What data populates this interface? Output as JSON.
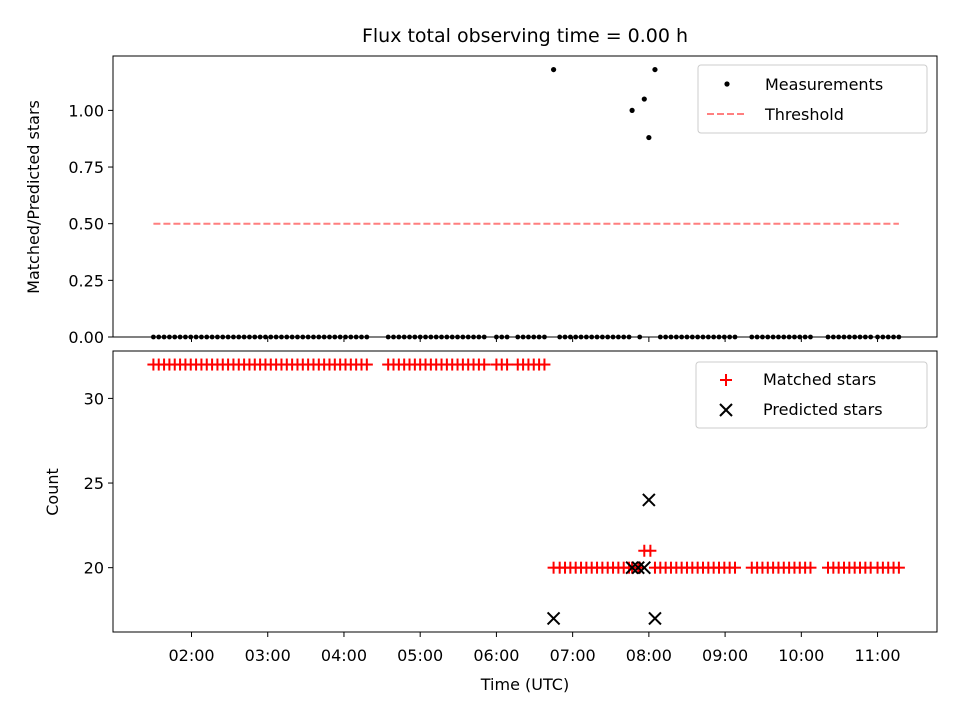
{
  "chart_data": {
    "title": "Flux total observing time = 0.00 h",
    "xlabel": "Time (UTC)",
    "x_ticks": [
      "02:00",
      "03:00",
      "04:00",
      "05:00",
      "06:00",
      "07:00",
      "08:00",
      "09:00",
      "10:00",
      "11:00"
    ],
    "xlim_hours": [
      0.97,
      11.78
    ],
    "panels": [
      {
        "type": "scatter",
        "ylabel": "Matched/Predicted stars",
        "ylim": [
          0,
          1.24
        ],
        "y_ticks": [
          "0.00",
          "0.25",
          "0.50",
          "0.75",
          "1.00"
        ],
        "y_tick_values": [
          0,
          0.25,
          0.5,
          0.75,
          1.0
        ],
        "legend_position": "top-right",
        "series": [
          {
            "name": "Measurements",
            "marker": "dot",
            "color": "#000000",
            "points_zero_hours": [
              1.5,
              1.57,
              1.64,
              1.71,
              1.78,
              1.85,
              1.92,
              1.99,
              2.06,
              2.13,
              2.2,
              2.27,
              2.34,
              2.41,
              2.48,
              2.55,
              2.62,
              2.69,
              2.76,
              2.83,
              2.9,
              2.97,
              3.04,
              3.11,
              3.18,
              3.25,
              3.32,
              3.39,
              3.46,
              3.53,
              3.6,
              3.67,
              3.74,
              3.81,
              3.88,
              3.95,
              4.02,
              4.09,
              4.16,
              4.23,
              4.3,
              4.58,
              4.65,
              4.72,
              4.79,
              4.86,
              4.93,
              5.0,
              5.07,
              5.14,
              5.21,
              5.28,
              5.35,
              5.42,
              5.49,
              5.56,
              5.63,
              5.7,
              5.77,
              5.84,
              6.0,
              6.07,
              6.14,
              6.28,
              6.35,
              6.42,
              6.49,
              6.56,
              6.63,
              6.83,
              6.9,
              6.97,
              7.04,
              7.11,
              7.18,
              7.25,
              7.32,
              7.39,
              7.46,
              7.53,
              7.6,
              7.67,
              7.74,
              7.88,
              8.15,
              8.22,
              8.29,
              8.36,
              8.43,
              8.5,
              8.57,
              8.64,
              8.71,
              8.78,
              8.85,
              8.92,
              8.99,
              9.06,
              9.13,
              9.35,
              9.42,
              9.49,
              9.56,
              9.63,
              9.7,
              9.77,
              9.84,
              9.91,
              9.98,
              10.05,
              10.12,
              10.35,
              10.42,
              10.49,
              10.56,
              10.63,
              10.7,
              10.77,
              10.84,
              10.91,
              11.0,
              11.07,
              11.14,
              11.21,
              11.28
            ],
            "points": [
              [
                6.75,
                1.18
              ],
              [
                7.78,
                1.0
              ],
              [
                7.94,
                1.05
              ],
              [
                8.0,
                0.88
              ],
              [
                8.08,
                1.18
              ]
            ]
          },
          {
            "name": "Threshold",
            "style": "dashed",
            "color": "#ff7f7f",
            "x": [
              1.5,
              11.28
            ],
            "y": [
              0.5,
              0.5
            ]
          }
        ]
      },
      {
        "type": "scatter",
        "ylabel": "Count",
        "ylim": [
          16.2,
          32.8
        ],
        "y_ticks": [
          "20",
          "25",
          "30"
        ],
        "y_tick_values": [
          20,
          25,
          30
        ],
        "legend_position": "top-right",
        "series": [
          {
            "name": "Matched stars",
            "marker": "plus",
            "color": "#ff0000",
            "groups": [
              {
                "y": 32,
                "x": [
                  1.5,
                  1.57,
                  1.64,
                  1.71,
                  1.78,
                  1.85,
                  1.92,
                  1.99,
                  2.06,
                  2.13,
                  2.2,
                  2.27,
                  2.34,
                  2.41,
                  2.48,
                  2.55,
                  2.62,
                  2.69,
                  2.76,
                  2.83,
                  2.9,
                  2.97,
                  3.04,
                  3.11,
                  3.18,
                  3.25,
                  3.32,
                  3.39,
                  3.46,
                  3.53,
                  3.6,
                  3.67,
                  3.74,
                  3.81,
                  3.88,
                  3.95,
                  4.02,
                  4.09,
                  4.16,
                  4.23,
                  4.3,
                  4.58,
                  4.65,
                  4.72,
                  4.79,
                  4.86,
                  4.93,
                  5.0,
                  5.07,
                  5.14,
                  5.21,
                  5.28,
                  5.35,
                  5.42,
                  5.49,
                  5.56,
                  5.63,
                  5.7,
                  5.77,
                  5.84,
                  6.0,
                  6.07,
                  6.14,
                  6.28,
                  6.35,
                  6.42,
                  6.49,
                  6.56,
                  6.63
                ]
              },
              {
                "y": 20,
                "x": [
                  6.75,
                  6.83,
                  6.9,
                  6.97,
                  7.04,
                  7.11,
                  7.18,
                  7.25,
                  7.32,
                  7.39,
                  7.46,
                  7.53,
                  7.6,
                  7.67,
                  7.74,
                  7.78,
                  7.86,
                  7.88,
                  8.08,
                  8.15,
                  8.22,
                  8.29,
                  8.36,
                  8.43,
                  8.5,
                  8.57,
                  8.64,
                  8.71,
                  8.78,
                  8.85,
                  8.92,
                  8.99,
                  9.06,
                  9.13,
                  9.35,
                  9.42,
                  9.49,
                  9.56,
                  9.63,
                  9.7,
                  9.77,
                  9.84,
                  9.91,
                  9.98,
                  10.05,
                  10.12,
                  10.35,
                  10.42,
                  10.49,
                  10.56,
                  10.63,
                  10.7,
                  10.77,
                  10.84,
                  10.91,
                  11.0,
                  11.07,
                  11.14,
                  11.21,
                  11.28
                ]
              },
              {
                "y": 21,
                "x": [
                  7.94,
                  8.02
                ]
              }
            ]
          },
          {
            "name": "Predicted stars",
            "marker": "x",
            "color": "#000000",
            "points": [
              [
                6.75,
                17
              ],
              [
                7.78,
                20
              ],
              [
                7.86,
                20
              ],
              [
                7.94,
                20
              ],
              [
                8.0,
                24
              ],
              [
                8.08,
                17
              ]
            ]
          }
        ]
      }
    ]
  }
}
